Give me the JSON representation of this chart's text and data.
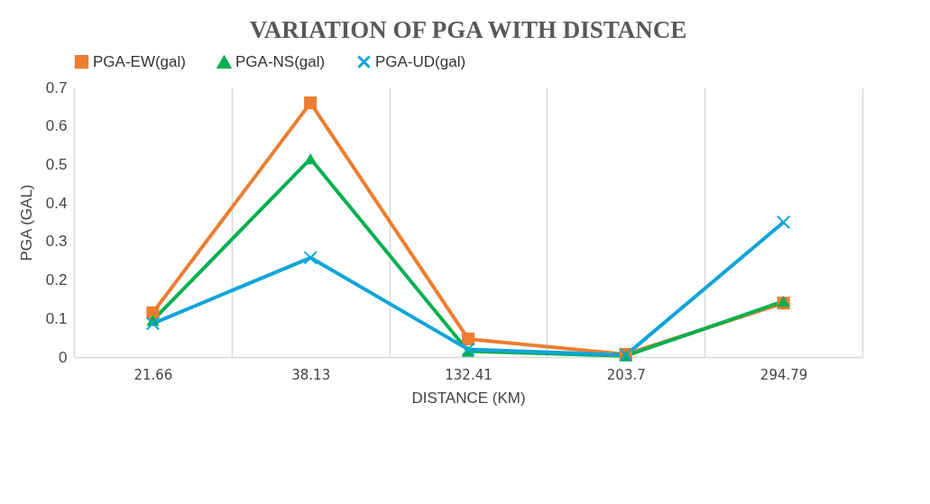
{
  "chart_data": {
    "type": "line",
    "title": "VARIATION OF PGA WITH DISTANCE",
    "xlabel": "DISTANCE (KM)",
    "ylabel": "PGA (GAL)",
    "categories": [
      "21.66",
      "38.13",
      "132.41",
      "203.7",
      "294.79"
    ],
    "series": [
      {
        "name": "PGA-EW(gal)",
        "color": "#ed7d31",
        "marker": "square",
        "values": [
          0.115,
          0.66,
          0.047,
          0.007,
          0.14
        ]
      },
      {
        "name": "PGA-NS(gal)",
        "color": "#00b050",
        "marker": "triangle",
        "values": [
          0.095,
          0.515,
          0.015,
          0.003,
          0.145
        ]
      },
      {
        "name": "PGA-UD(gal)",
        "color": "#0ea5d9",
        "marker": "cross",
        "values": [
          0.087,
          0.258,
          0.02,
          0.005,
          0.35
        ]
      }
    ],
    "ylim": [
      0,
      0.7
    ],
    "yticks": [
      0,
      0.1,
      0.2,
      0.3,
      0.4,
      0.5,
      0.6,
      0.7
    ],
    "grid": "x",
    "legend": "top"
  }
}
